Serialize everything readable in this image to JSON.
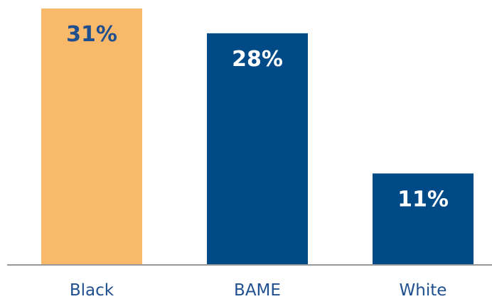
{
  "chart_data": {
    "type": "bar",
    "categories": [
      "Black",
      "BAME",
      "White"
    ],
    "values": [
      31,
      28,
      11
    ],
    "value_labels": [
      "31%",
      "28%",
      "11%"
    ],
    "title": "",
    "xlabel": "",
    "ylabel": "",
    "ylim": [
      0,
      31
    ],
    "grid": false,
    "legend": "none",
    "bar_colors": [
      "#f9b96a",
      "#004a87",
      "#004a87"
    ],
    "label_colors": [
      "#1f4f8f",
      "#ffffff",
      "#ffffff"
    ],
    "axis_color": "#777777",
    "category_label_color": "#1f4f8f"
  }
}
